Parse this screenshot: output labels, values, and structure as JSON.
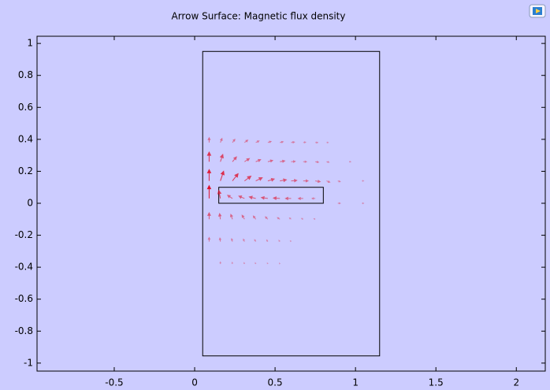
{
  "chart_data": {
    "type": "arrow_surface",
    "title": "Arrow Surface: Magnetic flux density",
    "xlim": [
      -0.98,
      2.18
    ],
    "ylim": [
      -1.05,
      1.045
    ],
    "xticks": [
      -0.5,
      0,
      0.5,
      1,
      1.5,
      2
    ],
    "yticks": [
      -1,
      -0.8,
      -0.6,
      -0.4,
      -0.2,
      0,
      0.2,
      0.4,
      0.6,
      0.8,
      1
    ],
    "color": "#e0102a",
    "shapes": [
      [
        0.05,
        -0.955,
        1.15,
        0.95
      ],
      [
        0.15,
        0,
        0.8,
        0.1
      ]
    ],
    "arrows": [
      [
        0.09,
        0.38,
        0,
        0.03
      ],
      [
        0.16,
        0.38,
        0.01,
        0.025
      ],
      [
        0.235,
        0.38,
        0.015,
        0.02
      ],
      [
        0.31,
        0.38,
        0.02,
        0.015
      ],
      [
        0.38,
        0.38,
        0.02,
        0.01
      ],
      [
        0.455,
        0.38,
        0.02,
        0.007
      ],
      [
        0.53,
        0.38,
        0.02,
        0.005
      ],
      [
        0.6,
        0.38,
        0.02,
        0.003
      ],
      [
        0.675,
        0.38,
        0.015,
        0.002
      ],
      [
        0.75,
        0.38,
        0.015,
        0
      ],
      [
        0.82,
        0.38,
        0.01,
        0
      ],
      [
        0.09,
        0.26,
        0,
        0.06
      ],
      [
        0.16,
        0.26,
        0.015,
        0.045
      ],
      [
        0.235,
        0.26,
        0.025,
        0.03
      ],
      [
        0.31,
        0.26,
        0.03,
        0.02
      ],
      [
        0.38,
        0.26,
        0.03,
        0.013
      ],
      [
        0.455,
        0.26,
        0.03,
        0.008
      ],
      [
        0.53,
        0.26,
        0.03,
        0.005
      ],
      [
        0.6,
        0.26,
        0.025,
        0.002
      ],
      [
        0.675,
        0.26,
        0.02,
        0
      ],
      [
        0.75,
        0.26,
        0.02,
        -0.003
      ],
      [
        0.82,
        0.26,
        0.015,
        -0.003
      ],
      [
        0.96,
        0.26,
        0.01,
        0
      ],
      [
        0.09,
        0.14,
        0,
        0.07
      ],
      [
        0.16,
        0.14,
        0.02,
        0.06
      ],
      [
        0.235,
        0.14,
        0.035,
        0.045
      ],
      [
        0.31,
        0.14,
        0.04,
        0.03
      ],
      [
        0.38,
        0.14,
        0.04,
        0.02
      ],
      [
        0.455,
        0.14,
        0.04,
        0.012
      ],
      [
        0.53,
        0.14,
        0.04,
        0.007
      ],
      [
        0.6,
        0.14,
        0.035,
        0.003
      ],
      [
        0.675,
        0.14,
        0.03,
        0
      ],
      [
        0.75,
        0.14,
        0.03,
        -0.005
      ],
      [
        0.82,
        0.14,
        0.02,
        -0.008
      ],
      [
        0.89,
        0.14,
        0.015,
        -0.005
      ],
      [
        1.04,
        0.14,
        0.01,
        0
      ],
      [
        0.09,
        0.03,
        0,
        0.08
      ],
      [
        0.16,
        0.03,
        -0.01,
        0.05
      ],
      [
        0.235,
        0.03,
        -0.03,
        0.02
      ],
      [
        0.31,
        0.03,
        -0.035,
        0.015
      ],
      [
        0.38,
        0.03,
        -0.04,
        0.01
      ],
      [
        0.455,
        0.03,
        -0.04,
        0.006
      ],
      [
        0.53,
        0.03,
        -0.04,
        0.003
      ],
      [
        0.6,
        0.03,
        -0.035,
        0
      ],
      [
        0.675,
        0.03,
        -0.03,
        0
      ],
      [
        0.75,
        0.03,
        -0.02,
        0
      ],
      [
        0.89,
        0,
        0.015,
        0
      ],
      [
        1.04,
        0,
        0.01,
        0
      ],
      [
        0.09,
        -0.1,
        0,
        0.04
      ],
      [
        0.16,
        -0.1,
        -0.005,
        0.035
      ],
      [
        0.235,
        -0.1,
        -0.01,
        0.03
      ],
      [
        0.31,
        -0.1,
        -0.015,
        0.025
      ],
      [
        0.38,
        -0.1,
        -0.015,
        0.02
      ],
      [
        0.455,
        -0.1,
        -0.015,
        0.015
      ],
      [
        0.53,
        -0.1,
        -0.015,
        0.01
      ],
      [
        0.6,
        -0.1,
        -0.01,
        0.008
      ],
      [
        0.675,
        -0.1,
        -0.01,
        0.005
      ],
      [
        0.75,
        -0.1,
        -0.008,
        0.003
      ],
      [
        0.09,
        -0.24,
        0,
        0.025
      ],
      [
        0.16,
        -0.24,
        -0.003,
        0.022
      ],
      [
        0.235,
        -0.24,
        -0.005,
        0.018
      ],
      [
        0.31,
        -0.24,
        -0.007,
        0.015
      ],
      [
        0.38,
        -0.24,
        -0.007,
        0.012
      ],
      [
        0.455,
        -0.24,
        -0.007,
        0.01
      ],
      [
        0.53,
        -0.24,
        -0.006,
        0.008
      ],
      [
        0.6,
        -0.24,
        -0.005,
        0.005
      ],
      [
        0.16,
        -0.38,
        0,
        0.012
      ],
      [
        0.235,
        -0.38,
        -0.002,
        0.01
      ],
      [
        0.31,
        -0.38,
        -0.003,
        0.008
      ],
      [
        0.38,
        -0.38,
        -0.003,
        0.007
      ],
      [
        0.455,
        -0.38,
        -0.003,
        0.006
      ],
      [
        0.53,
        -0.38,
        -0.003,
        0.005
      ]
    ]
  }
}
